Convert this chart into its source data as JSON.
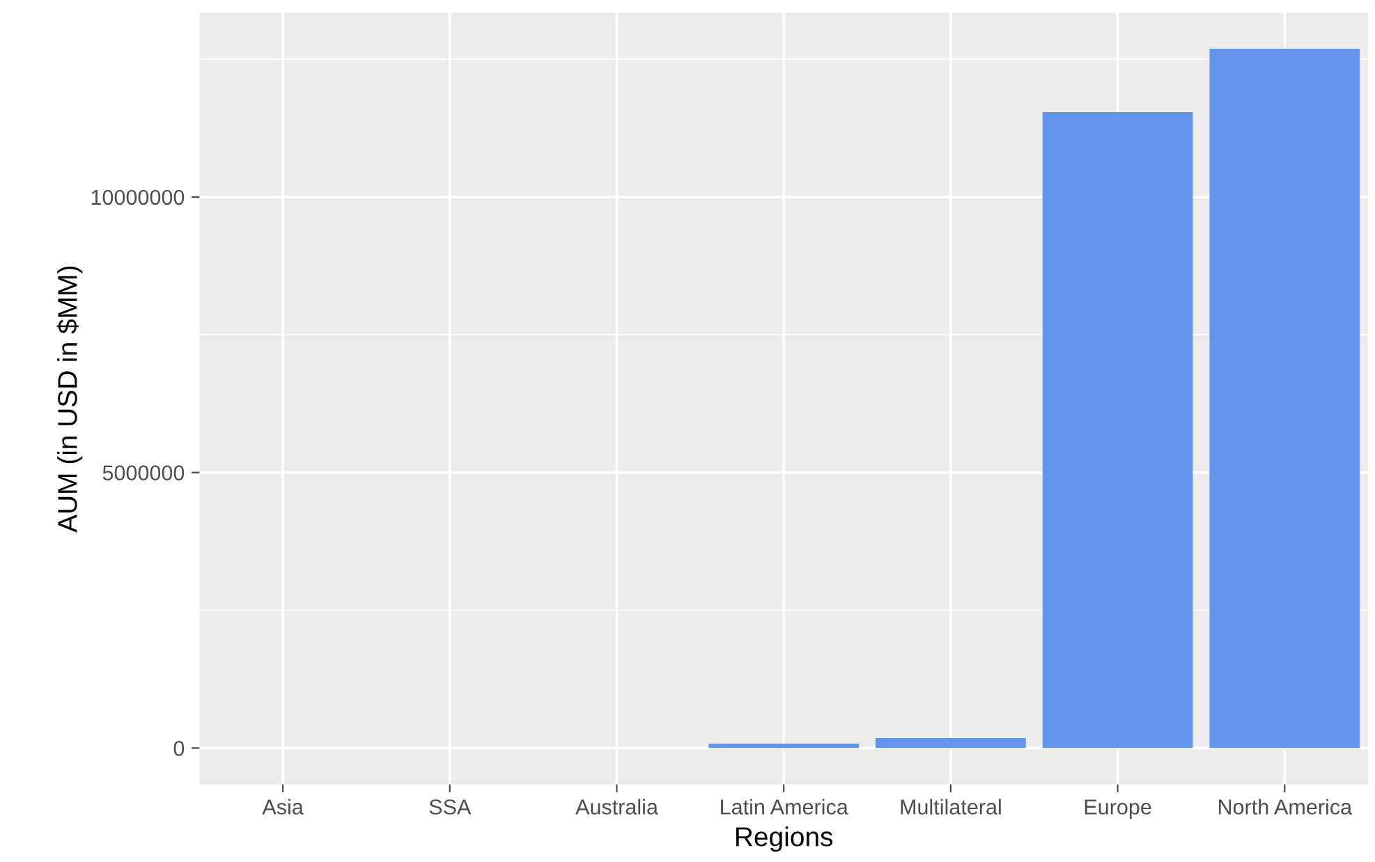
{
  "chart_data": {
    "type": "bar",
    "xlabel": "Regions",
    "ylabel": "AUM (in USD in $MM)",
    "categories": [
      "Asia",
      "SSA",
      "Australia",
      "Latin America",
      "Multilateral",
      "Europe",
      "North America"
    ],
    "values": [
      0,
      0,
      0,
      80000,
      180000,
      11540000,
      12690000
    ],
    "color": "#6495ed",
    "ylim": [
      -660000,
      13340000
    ],
    "yticks": [
      0,
      5000000,
      10000000
    ],
    "grid": true
  }
}
